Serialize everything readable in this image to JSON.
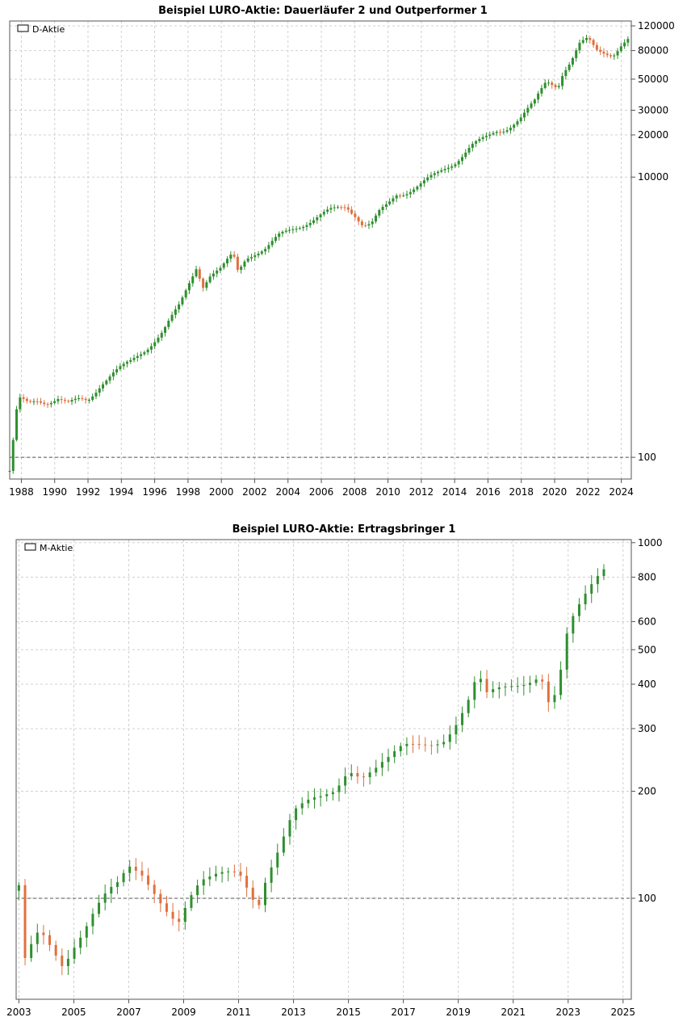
{
  "colors": {
    "up": "#2f8f2f",
    "down": "#e0703f",
    "grid": "#d0d0d0",
    "axis": "#555555",
    "reference": "#555555"
  },
  "chart_data": [
    {
      "type": "candlestick",
      "title": "Beispiel LURO-Aktie: Dauerläufer 2 und Outperformer 1",
      "legend": "D-Aktie",
      "legend_position": "top-left",
      "y_scale": "log",
      "ylim": [
        70,
        130000
      ],
      "xlim": [
        1987.3,
        2024.6
      ],
      "grid": true,
      "reference_line": 100,
      "y_ticks": [
        {
          "value": 100,
          "label": "100"
        },
        {
          "value": 10000,
          "label": "10000"
        },
        {
          "value": 20000,
          "label": "20000"
        },
        {
          "value": 30000,
          "label": "30000"
        },
        {
          "value": 50000,
          "label": "50000"
        },
        {
          "value": 80000,
          "label": "80000"
        },
        {
          "value": 120000,
          "label": "120000"
        }
      ],
      "x_ticks": [
        {
          "value": 1988,
          "label": "1988"
        },
        {
          "value": 1990,
          "label": "1990"
        },
        {
          "value": 1992,
          "label": "1992"
        },
        {
          "value": 1994,
          "label": "1994"
        },
        {
          "value": 1996,
          "label": "1996"
        },
        {
          "value": 1998,
          "label": "1998"
        },
        {
          "value": 2000,
          "label": "2000"
        },
        {
          "value": 2002,
          "label": "2002"
        },
        {
          "value": 2004,
          "label": "2004"
        },
        {
          "value": 2006,
          "label": "2006"
        },
        {
          "value": 2008,
          "label": "2008"
        },
        {
          "value": 2010,
          "label": "2010"
        },
        {
          "value": 2012,
          "label": "2012"
        },
        {
          "value": 2014,
          "label": "2014"
        },
        {
          "value": 2016,
          "label": "2016"
        },
        {
          "value": 2018,
          "label": "2018"
        },
        {
          "value": 2020,
          "label": "2020"
        },
        {
          "value": 2022,
          "label": "2022"
        },
        {
          "value": 2024,
          "label": "2024"
        }
      ],
      "x": [
        1987.3,
        1987.8,
        1988.4,
        1989.0,
        1989.5,
        1990.2,
        1990.8,
        1991.5,
        1992.0,
        1992.8,
        1993.5,
        1994.5,
        1995.5,
        1996.5,
        1997.5,
        1998.5,
        1998.9,
        1999.3,
        2000.0,
        2000.7,
        2001.0,
        2001.5,
        2002.0,
        2002.7,
        2003.5,
        2004.5,
        2005.5,
        2006.5,
        2007.5,
        2008.0,
        2008.5,
        2009.0,
        2009.5,
        2010.0,
        2010.5,
        2011.0,
        2012.0,
        2013.0,
        2014.0,
        2015.0,
        2016.0,
        2016.5,
        2017.0,
        2018.0,
        2018.8,
        2019.5,
        2020.2,
        2020.5,
        2021.0,
        2021.5,
        2022.0,
        2022.5,
        2023.0,
        2023.5,
        2024.0,
        2024.4
      ],
      "values": [
        80,
        260,
        240,
        255,
        250,
        265,
        240,
        255,
        255,
        340,
        400,
        470,
        600,
        800,
        1200,
        2300,
        1700,
        2000,
        2200,
        2800,
        2100,
        2700,
        2900,
        3100,
        3800,
        4400,
        5000,
        5700,
        6200,
        5500,
        4600,
        4600,
        5600,
        6300,
        7500,
        7800,
        9000,
        10500,
        12800,
        17000,
        19000,
        21000,
        22000,
        27000,
        34000,
        48000,
        45000,
        57000,
        68000,
        88000,
        95000,
        80000,
        78000,
        76000,
        88000,
        95000
      ]
    },
    {
      "type": "candlestick",
      "title": "Beispiel LURO-Aktie: Ertragsbringer 1",
      "legend": "M-Aktie",
      "legend_position": "top-left",
      "y_scale": "log",
      "ylim": [
        52,
        1020
      ],
      "xlim": [
        2002.9,
        2025.3
      ],
      "grid": true,
      "reference_line": 100,
      "y_ticks": [
        {
          "value": 100,
          "label": "100"
        },
        {
          "value": 200,
          "label": "200"
        },
        {
          "value": 300,
          "label": "300"
        },
        {
          "value": 400,
          "label": "400"
        },
        {
          "value": 500,
          "label": "500"
        },
        {
          "value": 600,
          "label": "600"
        },
        {
          "value": 800,
          "label": "800"
        },
        {
          "value": 1000,
          "label": "1000"
        }
      ],
      "x_ticks": [
        {
          "value": 2003,
          "label": "2003"
        },
        {
          "value": 2005,
          "label": "2005"
        },
        {
          "value": 2007,
          "label": "2007"
        },
        {
          "value": 2009,
          "label": "2009"
        },
        {
          "value": 2011,
          "label": "2011"
        },
        {
          "value": 2013,
          "label": "2013"
        },
        {
          "value": 2015,
          "label": "2015"
        },
        {
          "value": 2017,
          "label": "2017"
        },
        {
          "value": 2019,
          "label": "2019"
        },
        {
          "value": 2021,
          "label": "2021"
        },
        {
          "value": 2023,
          "label": "2023"
        },
        {
          "value": 2025,
          "label": "2025"
        }
      ],
      "x": [
        2003.0,
        2003.15,
        2003.3,
        2003.5,
        2003.8,
        2004.2,
        2004.6,
        2005.0,
        2005.4,
        2005.8,
        2006.2,
        2006.6,
        2007.0,
        2007.5,
        2008.0,
        2008.4,
        2008.8,
        2009.2,
        2009.6,
        2010.0,
        2010.5,
        2011.0,
        2011.4,
        2011.7,
        2012.0,
        2012.5,
        2013.0,
        2013.5,
        2014.0,
        2014.5,
        2015.0,
        2015.5,
        2016.0,
        2016.5,
        2017.0,
        2017.5,
        2018.0,
        2018.5,
        2019.0,
        2019.5,
        2019.7,
        2020.0,
        2020.5,
        2021.0,
        2021.5,
        2022.0,
        2022.3,
        2022.6,
        2023.0,
        2023.5,
        2024.0,
        2024.3
      ],
      "values": [
        105,
        70,
        60,
        75,
        78,
        72,
        66,
        76,
        85,
        95,
        102,
        106,
        118,
        115,
        105,
        96,
        88,
        100,
        108,
        110,
        115,
        120,
        108,
        98,
        118,
        140,
        170,
        180,
        190,
        205,
        240,
        225,
        230,
        240,
        260,
        270,
        280,
        290,
        320,
        370,
        420,
        360,
        380,
        400,
        420,
        440,
        360,
        380,
        560,
        660,
        780,
        850
      ]
    }
  ]
}
